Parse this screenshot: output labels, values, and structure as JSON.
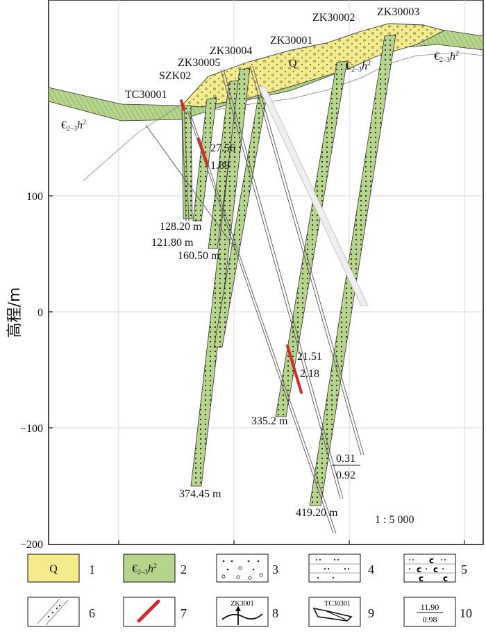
{
  "axis": {
    "ylabel": "高程/m",
    "ticks": [
      "100",
      "0",
      "−100",
      "−200"
    ]
  },
  "scale": "1 : 5 000",
  "units": {
    "Q": "Q",
    "formation": {
      "main": "€",
      "sub": "2–3",
      "letter": "h",
      "sup": "2"
    }
  },
  "boreholes": {
    "tc": "TC30001",
    "szk": "SZK02",
    "zk5": "ZK30005",
    "zk4": "ZK30004",
    "zk1": "ZK30001",
    "zk2": "ZK30002",
    "zk3": "ZK30003"
  },
  "depths": {
    "d1": "128.20 m",
    "d2": "121.80 m",
    "d3": "160.50 m",
    "d4": "335.2 m",
    "d5": "374.45 m",
    "d6": "419.20 m"
  },
  "ore": {
    "a_grade": "27.56",
    "a_thick": "1.89",
    "b_grade": "21.51",
    "b_thick": "2.18",
    "c_grade": "0.31",
    "c_thick": "0.92"
  },
  "legend": [
    {
      "num": "1",
      "text": "Q"
    },
    {
      "num": "2",
      "text": "€"
    },
    {
      "num": "3"
    },
    {
      "num": "4"
    },
    {
      "num": "5",
      "text": "c"
    },
    {
      "num": "6"
    },
    {
      "num": "7"
    },
    {
      "num": "8",
      "text": "ZK3001"
    },
    {
      "num": "9",
      "text": "TC30301"
    },
    {
      "num": "10",
      "top": "11.90",
      "bottom": "0.98"
    }
  ],
  "colors": {
    "quaternary": "#f4ec8c",
    "formation": "#b6d48c",
    "ore": "#d42a2a"
  }
}
